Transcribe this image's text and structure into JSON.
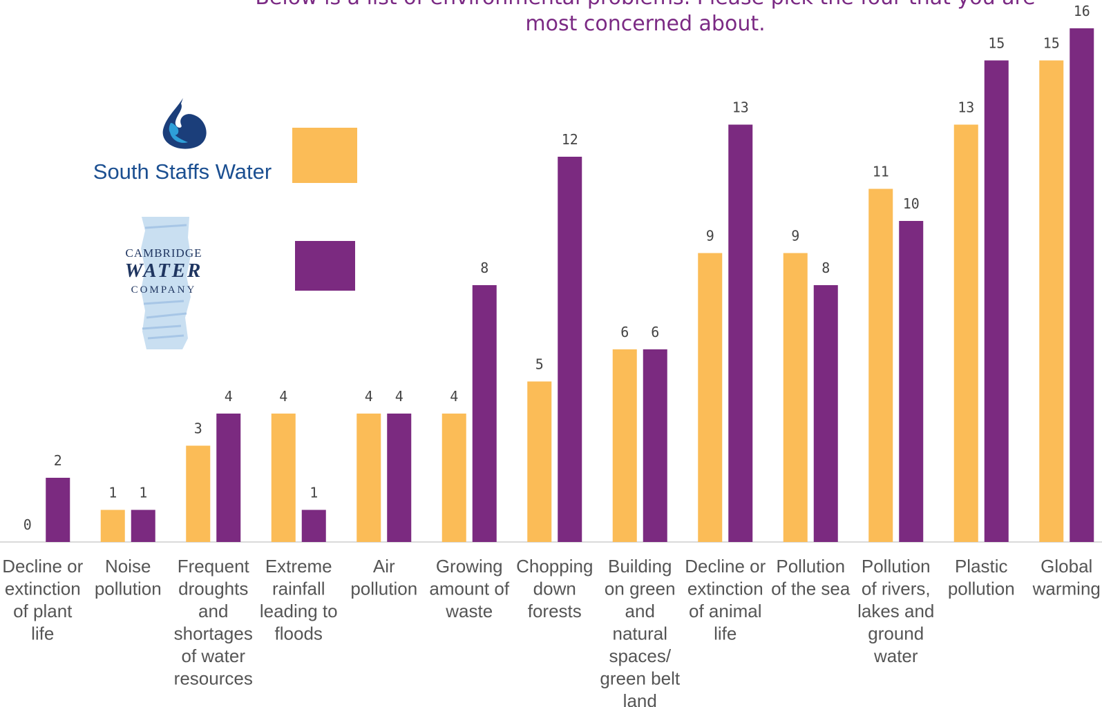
{
  "chart_data": {
    "type": "bar",
    "title_lines": [
      "Below is a list of environmental problems. Please pick the four that you are",
      "most concerned about."
    ],
    "categories": [
      [
        "Decline or",
        "extinction",
        "of plant",
        "life"
      ],
      [
        "Noise",
        "pollution"
      ],
      [
        "Frequent",
        "droughts",
        "and",
        "shortages",
        "of water",
        "resources"
      ],
      [
        "Extreme",
        "rainfall",
        "leading to",
        "floods"
      ],
      [
        "Air",
        "pollution"
      ],
      [
        "Growing",
        "amount of",
        "waste"
      ],
      [
        "Chopping",
        "down",
        "forests"
      ],
      [
        "Building",
        "on green",
        "and",
        "natural",
        "spaces/",
        "green belt",
        "land"
      ],
      [
        "Decline or",
        "extinction",
        "of animal",
        "life"
      ],
      [
        "Pollution",
        "of the sea"
      ],
      [
        "Pollution",
        "of rivers,",
        "lakes and",
        "ground",
        "water"
      ],
      [
        "Plastic",
        "pollution"
      ],
      [
        "Global",
        "warming"
      ]
    ],
    "series": [
      {
        "legend": "South Staffs Water",
        "color": "#fbbc57",
        "values": [
          0,
          1,
          3,
          4,
          4,
          4,
          5,
          6,
          9,
          9,
          11,
          13,
          15
        ]
      },
      {
        "legend": "Cambridge Water Company",
        "color": "#7b2a80",
        "values": [
          2,
          1,
          4,
          1,
          4,
          8,
          12,
          6,
          13,
          8,
          10,
          15,
          16
        ]
      }
    ],
    "ylim": [
      0,
      16
    ],
    "grid": false,
    "data_labels": true,
    "legend_placement": "top-left, company logos beside colour swatches"
  },
  "logos": {
    "south_staffs": "South Staffs Water",
    "cambridge_top": "CAMBRIDGE",
    "cambridge_mid": "WATER",
    "cambridge_bot": "COMPANY"
  },
  "colors": {
    "title": "#7b2a84",
    "axis": "#d9d9d9",
    "label": "#555555"
  }
}
